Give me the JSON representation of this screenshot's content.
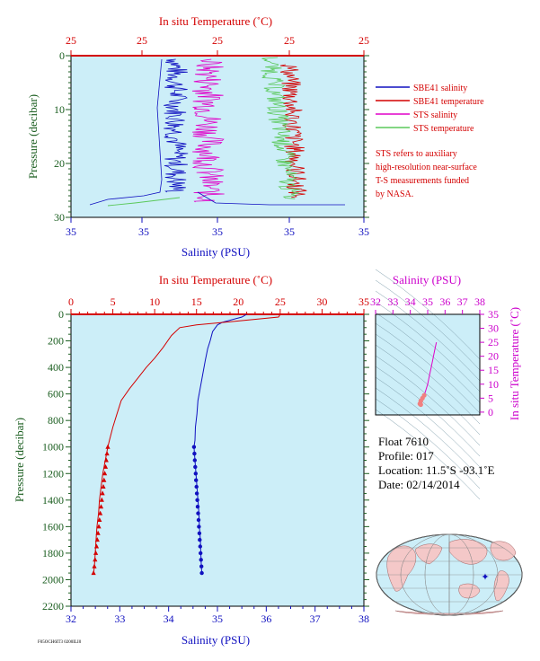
{
  "top_panel": {
    "temp_axis_title": "In situ Temperature (˚C)",
    "temp_ticks": [
      "25",
      "25",
      "25",
      "25",
      "25",
      "25"
    ],
    "sal_axis_title": "Salinity (PSU)",
    "sal_ticks": [
      "35",
      "35",
      "35",
      "35",
      "35"
    ],
    "pressure_axis_title": "Pressure (decibar)",
    "pressure_ticks": [
      "0",
      "10",
      "20",
      "30"
    ]
  },
  "legend": {
    "items": [
      {
        "label": "SBE41 salinity",
        "color": "#1010c0"
      },
      {
        "label": "SBE41 temperature",
        "color": "#d40000"
      },
      {
        "label": "STS salinity",
        "color": "#e000c8"
      },
      {
        "label": "STS temperature",
        "color": "#5ac85a"
      }
    ],
    "note": [
      "STS refers to auxiliary",
      "high-resolution near-surface",
      "T-S measurements funded",
      "by NASA."
    ]
  },
  "main_panel": {
    "temp_axis_title": "In situ Temperature (˚C)",
    "temp_ticks": [
      "0",
      "5",
      "10",
      "15",
      "20",
      "25",
      "30",
      "35"
    ],
    "sal_axis_title": "Salinity (PSU)",
    "sal_ticks": [
      "32",
      "33",
      "34",
      "35",
      "36",
      "37",
      "38"
    ],
    "pressure_axis_title": "Pressure (decibar)",
    "pressure_ticks": [
      "0",
      "200",
      "400",
      "600",
      "800",
      "1000",
      "1200",
      "1400",
      "1600",
      "1800",
      "2000",
      "2200"
    ]
  },
  "ts_panel": {
    "sal_axis_title": "Salinity (PSU)",
    "sal_ticks": [
      "32",
      "33",
      "34",
      "35",
      "36",
      "37",
      "38"
    ],
    "temp_axis_title": "In situ Temperature (˚C)",
    "temp_ticks": [
      "0",
      "5",
      "10",
      "15",
      "20",
      "25",
      "30",
      "35"
    ]
  },
  "float_info": {
    "float": "Float  7610",
    "profile": "Profile:  017",
    "location": "Location:  11.5˚S  -93.1˚E",
    "date": "Date:  02/14/2014"
  },
  "footer_code": "F05OCH6IT3 0200ILI0",
  "colors": {
    "plot_bg": "#cceef8",
    "temperature": "#d40000",
    "salinity": "#1010c0",
    "sts_salinity": "#e000c8",
    "sts_temperature": "#5ac85a",
    "pressure_axis": "#1b5e20",
    "ts_axis": "#cc00cc"
  },
  "chart_data": [
    {
      "type": "line",
      "xlabel": "Salinity (PSU)",
      "x2label": "In situ Temperature (˚C)",
      "ylabel": "Pressure (decibar)",
      "ylim": [
        30,
        0
      ],
      "series": [
        {
          "name": "SBE41 salinity",
          "values": "noisy near-uniform ~35 PSU, 0–28 dbar"
        },
        {
          "name": "SBE41 temperature",
          "values": "~25 ˚C near surface"
        },
        {
          "name": "STS salinity",
          "values": "noisy ~35 PSU, 0–28 dbar"
        },
        {
          "name": "STS temperature",
          "values": "~25 ˚C near surface"
        }
      ]
    },
    {
      "type": "line",
      "xlabel": "Salinity (PSU)",
      "xlim": [
        32,
        38
      ],
      "x2label": "In situ Temperature (˚C)",
      "x2lim": [
        0,
        35
      ],
      "ylabel": "Pressure (decibar)",
      "ylim": [
        2200,
        0
      ],
      "series": [
        {
          "name": "Salinity",
          "x_unit": "PSU",
          "points": [
            [
              35.6,
              0
            ],
            [
              35.5,
              20
            ],
            [
              35.1,
              60
            ],
            [
              35.0,
              80
            ],
            [
              34.9,
              130
            ],
            [
              34.85,
              200
            ],
            [
              34.8,
              260
            ],
            [
              34.75,
              350
            ],
            [
              34.7,
              450
            ],
            [
              34.65,
              550
            ],
            [
              34.6,
              650
            ],
            [
              34.58,
              750
            ],
            [
              34.55,
              850
            ],
            [
              34.54,
              950
            ],
            [
              34.52,
              1000
            ],
            [
              34.54,
              1100
            ],
            [
              34.56,
              1200
            ],
            [
              34.58,
              1300
            ],
            [
              34.6,
              1400
            ],
            [
              34.62,
              1500
            ],
            [
              34.63,
              1600
            ],
            [
              34.65,
              1700
            ],
            [
              34.66,
              1800
            ],
            [
              34.67,
              1900
            ],
            [
              34.68,
              1950
            ]
          ]
        },
        {
          "name": "Temperature",
          "x_unit": "˚C",
          "points": [
            [
              25.0,
              0
            ],
            [
              24.8,
              20
            ],
            [
              20,
              50
            ],
            [
              15,
              80
            ],
            [
              13,
              100
            ],
            [
              12,
              160
            ],
            [
              11,
              250
            ],
            [
              10,
              330
            ],
            [
              9,
              400
            ],
            [
              8,
              480
            ],
            [
              7,
              560
            ],
            [
              6,
              650
            ],
            [
              5.5,
              750
            ],
            [
              5,
              850
            ],
            [
              4.6,
              950
            ],
            [
              4.4,
              1000
            ],
            [
              4.1,
              1100
            ],
            [
              3.8,
              1200
            ],
            [
              3.6,
              1300
            ],
            [
              3.4,
              1400
            ],
            [
              3.3,
              1500
            ],
            [
              3.1,
              1600
            ],
            [
              3.0,
              1700
            ],
            [
              2.9,
              1800
            ],
            [
              2.8,
              1900
            ],
            [
              2.7,
              1950
            ]
          ]
        }
      ]
    },
    {
      "type": "scatter",
      "xlabel": "Salinity (PSU)",
      "xlim": [
        32,
        38
      ],
      "ylabel": "In situ Temperature (˚C)",
      "ylim": [
        -1,
        35
      ],
      "points": [
        [
          35.5,
          25
        ],
        [
          35.4,
          22
        ],
        [
          35.3,
          19
        ],
        [
          35.2,
          16
        ],
        [
          35.1,
          13
        ],
        [
          35.0,
          10
        ],
        [
          34.9,
          8
        ],
        [
          34.8,
          6
        ],
        [
          34.7,
          5
        ],
        [
          34.6,
          4
        ],
        [
          34.55,
          3
        ],
        [
          34.6,
          2.7
        ]
      ]
    }
  ]
}
